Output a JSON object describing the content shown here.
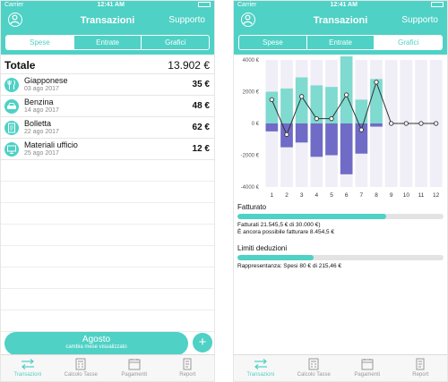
{
  "status": {
    "carrier": "Carrier",
    "time": "12:41 AM"
  },
  "nav": {
    "title": "Transazioni",
    "support": "Supporto"
  },
  "segments": [
    "Spese",
    "Entrate",
    "Grafici"
  ],
  "left": {
    "total_label": "Totale",
    "total_value": "13.902 €",
    "items": [
      {
        "name": "Giapponese",
        "date": "03 ago 2017",
        "amount": "35 €",
        "icon": "fork-knife-icon"
      },
      {
        "name": "Benzina",
        "date": "14 ago 2017",
        "amount": "48 €",
        "icon": "car-icon"
      },
      {
        "name": "Bolletta",
        "date": "22 ago 2017",
        "amount": "62 €",
        "icon": "document-icon"
      },
      {
        "name": "Materiali ufficio",
        "date": "25 ago 2017",
        "amount": "12 €",
        "icon": "monitor-icon"
      }
    ],
    "month_button": {
      "label": "Agosto",
      "sub": "cambia mese visualizzato"
    },
    "add_label": "+"
  },
  "tabbar": [
    "Transazioni",
    "Calcolo Tasse",
    "Pagamenti",
    "Report"
  ],
  "right": {
    "fatturato_label": "Fatturato",
    "fatturato_fraction": 0.72,
    "fatturato_line1": "Fatturati 21.545,5 € di 30.000 €)",
    "fatturato_line2": "È ancora possibile fatturare 8.454,5 €",
    "limiti_label": "Limiti deduzioni",
    "limiti_fraction": 0.37,
    "limiti_line1": "Rappresentanza: Spesi 80 € di 215,46 €"
  },
  "chart_data": {
    "type": "bar",
    "categories": [
      "1",
      "2",
      "3",
      "4",
      "5",
      "6",
      "7",
      "8",
      "9",
      "10",
      "11",
      "12"
    ],
    "series": [
      {
        "values": [
          2000,
          2200,
          2900,
          2400,
          2300,
          5000,
          1500,
          2800,
          0,
          0,
          0,
          0
        ]
      },
      {
        "values": [
          -500,
          -1500,
          -1200,
          -2100,
          -2000,
          -3200,
          -1900,
          -200,
          0,
          0,
          0,
          0
        ]
      },
      {
        "values": [
          1500,
          -700,
          1700,
          300,
          300,
          1800,
          -400,
          2600,
          0,
          0,
          0,
          0
        ]
      }
    ],
    "y_ticks": [
      "4000 €",
      "2000 €",
      "0 €",
      "-2000 €",
      "-4000 €"
    ],
    "ylim": [
      -4000,
      4000
    ],
    "colors": {
      "income": "#7fdad0",
      "expense": "#6f6bc6",
      "line": "#333333",
      "background": "#f0eef6"
    }
  }
}
